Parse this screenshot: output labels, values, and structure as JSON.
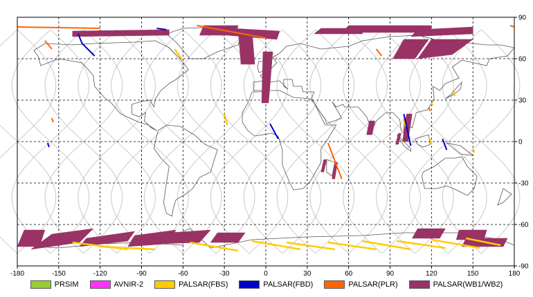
{
  "chart_data": {
    "type": "map",
    "title": "",
    "xlim": [
      -180,
      180
    ],
    "ylim": [
      -90,
      90
    ],
    "x_ticks": [
      -180,
      -150,
      -120,
      -90,
      -60,
      -30,
      0,
      30,
      60,
      90,
      120,
      150,
      180
    ],
    "x_tick_labels": [
      "-180",
      "-150",
      "-120",
      "-90",
      "-60",
      "-30",
      "0",
      "30",
      "60",
      "90",
      "120",
      "150",
      "180"
    ],
    "y_ticks": [
      90,
      60,
      30,
      0,
      -30,
      -60,
      -90
    ],
    "y_tick_labels": [
      "90",
      "60",
      "30",
      "0",
      "-30",
      "-60",
      "-90"
    ],
    "grid": "dashed",
    "legend_position": "bottom",
    "legend": [
      {
        "name": "PRSIM",
        "color": "#99cc33"
      },
      {
        "name": "AVNIR-2",
        "color": "#ff33ff"
      },
      {
        "name": "PALSAR(FBS)",
        "color": "#ffcc00"
      },
      {
        "name": "PALSAR(FBD)",
        "color": "#0000cc"
      },
      {
        "name": "PALSAR(PLR)",
        "color": "#ff6600"
      },
      {
        "name": "PALSAR(WB1/WB2)",
        "color": "#993366"
      }
    ],
    "swaths_wb": [
      [
        [
          -140,
          80
        ],
        [
          -70,
          81
        ],
        [
          -70,
          77
        ],
        [
          -140,
          76
        ]
      ],
      [
        [
          -25,
          82
        ],
        [
          10,
          80
        ],
        [
          8,
          74
        ],
        [
          -28,
          77
        ]
      ],
      [
        [
          40,
          82
        ],
        [
          70,
          82
        ],
        [
          70,
          78
        ],
        [
          35,
          78
        ]
      ],
      [
        [
          60,
          84
        ],
        [
          120,
          84
        ],
        [
          120,
          79
        ],
        [
          55,
          79
        ]
      ],
      [
        [
          110,
          81
        ],
        [
          150,
          83
        ],
        [
          150,
          78
        ],
        [
          105,
          76
        ]
      ],
      [
        [
          120,
          74
        ],
        [
          150,
          74
        ],
        [
          135,
          63
        ],
        [
          110,
          60
        ]
      ],
      [
        [
          100,
          74
        ],
        [
          118,
          74
        ],
        [
          108,
          60
        ],
        [
          92,
          60
        ]
      ],
      [
        [
          -20,
          80
        ],
        [
          -10,
          80
        ],
        [
          -8,
          56
        ],
        [
          -18,
          56
        ]
      ],
      [
        [
          -2,
          65
        ],
        [
          5,
          65
        ],
        [
          2,
          28
        ],
        [
          -3,
          28
        ]
      ],
      [
        [
          -45,
          84
        ],
        [
          -20,
          84
        ],
        [
          -22,
          77
        ],
        [
          -48,
          77
        ]
      ],
      [
        [
          102,
          20
        ],
        [
          106,
          20
        ],
        [
          103,
          0
        ],
        [
          99,
          0
        ]
      ],
      [
        [
          75,
          15
        ],
        [
          79,
          15
        ],
        [
          77,
          5
        ],
        [
          73,
          5
        ]
      ],
      [
        [
          42,
          -13
        ],
        [
          44,
          -13
        ],
        [
          42,
          -22
        ],
        [
          40,
          -22
        ]
      ],
      [
        [
          96,
          6
        ],
        [
          98,
          6
        ],
        [
          96,
          -2
        ],
        [
          94,
          -2
        ]
      ],
      [
        [
          50,
          -15
        ],
        [
          52,
          -15
        ],
        [
          50,
          -27
        ],
        [
          48,
          -27
        ]
      ],
      [
        [
          -175,
          -64
        ],
        [
          -160,
          -64
        ],
        [
          -164,
          -76
        ],
        [
          -180,
          -76
        ]
      ],
      [
        [
          -155,
          -67
        ],
        [
          -125,
          -63
        ],
        [
          -135,
          -73
        ],
        [
          -170,
          -78
        ]
      ],
      [
        [
          -130,
          -70
        ],
        [
          -95,
          -65
        ],
        [
          -100,
          -72
        ],
        [
          -135,
          -76
        ]
      ],
      [
        [
          -95,
          -68
        ],
        [
          -65,
          -64
        ],
        [
          -72,
          -74
        ],
        [
          -100,
          -76
        ]
      ],
      [
        [
          -70,
          -66
        ],
        [
          -40,
          -64
        ],
        [
          -48,
          -73
        ],
        [
          -78,
          -74
        ]
      ],
      [
        [
          -35,
          -66
        ],
        [
          -15,
          -66
        ],
        [
          -20,
          -73
        ],
        [
          -40,
          -73
        ]
      ],
      [
        [
          110,
          -63
        ],
        [
          130,
          -63
        ],
        [
          126,
          -70
        ],
        [
          106,
          -70
        ]
      ],
      [
        [
          140,
          -64
        ],
        [
          160,
          -64
        ],
        [
          158,
          -71
        ],
        [
          138,
          -71
        ]
      ],
      [
        [
          145,
          -70
        ],
        [
          175,
          -70
        ],
        [
          172,
          -76
        ],
        [
          142,
          -76
        ]
      ]
    ],
    "lines_fbd": [
      [
        [
          -136,
          78
        ],
        [
          -133,
          71
        ],
        [
          -124,
          62
        ]
      ],
      [
        [
          -79,
          82
        ],
        [
          -72,
          81
        ]
      ],
      [
        [
          100,
          20
        ],
        [
          105,
          -3
        ]
      ],
      [
        [
          128,
          2
        ],
        [
          131,
          -6
        ]
      ],
      [
        [
          3,
          13
        ],
        [
          9,
          2
        ]
      ],
      [
        [
          -158,
          -1
        ],
        [
          -157,
          -4
        ]
      ]
    ],
    "lines_plr": [
      [
        [
          -180,
          83
        ],
        [
          -120,
          82
        ]
      ],
      [
        [
          -50,
          84
        ],
        [
          0,
          75
        ]
      ],
      [
        [
          45,
          -1
        ],
        [
          55,
          -27
        ]
      ],
      [
        [
          -160,
          73
        ],
        [
          -155,
          67
        ]
      ],
      [
        [
          -155,
          17
        ],
        [
          -154,
          14
        ]
      ],
      [
        [
          80,
          67
        ],
        [
          84,
          62
        ]
      ],
      [
        [
          177,
          84
        ],
        [
          180,
          83
        ]
      ],
      [
        [
          118,
          25
        ],
        [
          119,
          22
        ]
      ]
    ],
    "lines_fbs": [
      [
        [
          -66,
          67
        ],
        [
          -61,
          60
        ]
      ],
      [
        [
          -30,
          20
        ],
        [
          -28,
          12
        ]
      ],
      [
        [
          100,
          17
        ],
        [
          101,
          11
        ]
      ],
      [
        [
          120,
          28
        ],
        [
          121,
          26
        ]
      ],
      [
        [
          136,
          36
        ],
        [
          137,
          33
        ]
      ],
      [
        [
          150,
          -5
        ],
        [
          151,
          -8
        ]
      ],
      [
        [
          119,
          2
        ],
        [
          120,
          -2
        ]
      ],
      [
        [
          -120,
          -76
        ],
        [
          -80,
          -78
        ]
      ],
      [
        [
          -55,
          -73
        ],
        [
          -20,
          -79
        ]
      ],
      [
        [
          -10,
          -72
        ],
        [
          25,
          -78
        ]
      ],
      [
        [
          15,
          -73
        ],
        [
          50,
          -78
        ]
      ],
      [
        [
          45,
          -73
        ],
        [
          80,
          -78
        ]
      ],
      [
        [
          70,
          -72
        ],
        [
          105,
          -78
        ]
      ],
      [
        [
          95,
          -72
        ],
        [
          130,
          -77
        ]
      ],
      [
        [
          120,
          -71
        ],
        [
          155,
          -77
        ]
      ],
      [
        [
          145,
          -70
        ],
        [
          170,
          -75
        ]
      ],
      [
        [
          -140,
          -73
        ],
        [
          -100,
          -78
        ]
      ]
    ]
  }
}
